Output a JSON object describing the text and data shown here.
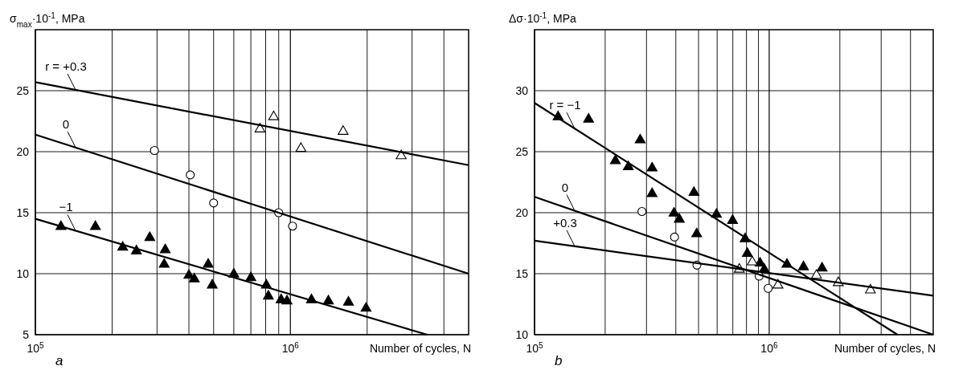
{
  "chart_data": [
    {
      "type": "scatter",
      "xlabel": "Number of cycles, N",
      "ylabel": "σ$_{max}$·10$^{-1}$, MPa",
      "annotations": [
        "a"
      ],
      "log": "x",
      "grid": true,
      "xlim": [
        100000,
        5000000
      ],
      "xticks": [
        {
          "value": 100000,
          "label": "10$^{5}$"
        },
        {
          "value": 200000,
          "label": null
        },
        {
          "value": 300000,
          "label": null
        },
        {
          "value": 400000,
          "label": null
        },
        {
          "value": 500000,
          "label": null
        },
        {
          "value": 600000,
          "label": null
        },
        {
          "value": 700000,
          "label": null
        },
        {
          "value": 800000,
          "label": null
        },
        {
          "value": 900000,
          "label": null
        },
        {
          "value": 1000000,
          "label": "10$^{6}$"
        },
        {
          "value": 2000000,
          "label": null
        },
        {
          "value": 3000000,
          "label": null
        },
        {
          "value": 4000000,
          "label": null
        }
      ],
      "ylim": [
        5,
        30
      ],
      "yticks": [
        5,
        10,
        15,
        20,
        25
      ],
      "series": [
        {
          "marker": "triangle",
          "color": "#000000",
          "x": [
            126000,
            172000,
            220000,
            249000,
            281000,
            323000,
            320000,
            400000,
            420000,
            476000,
            494000,
            600000,
            700000,
            805000,
            820000,
            920000,
            970000,
            1210000,
            1410000,
            1690000,
            1980000
          ],
          "values": [
            13.9,
            13.9,
            12.2,
            11.9,
            13.0,
            12.0,
            10.8,
            9.9,
            9.6,
            10.8,
            9.1,
            10.0,
            9.7,
            9.1,
            8.2,
            7.9,
            7.8,
            7.9,
            7.8,
            7.7,
            7.2
          ]
        },
        {
          "marker": "circle",
          "color": "#ffffff",
          "x": [
            293000,
            405000,
            500000,
            900000,
            1020000
          ],
          "values": [
            20.1,
            18.1,
            15.8,
            15.0,
            13.9
          ]
        },
        {
          "marker": "triangle",
          "color": "#ffffff",
          "x": [
            760000,
            860000,
            1100000,
            1610000,
            2720000
          ],
          "values": [
            21.9,
            22.9,
            20.3,
            21.7,
            19.7
          ]
        },
        {
          "type": "line",
          "name": "r = +0.3",
          "color": "#000000",
          "x": [
            100000,
            5000000
          ],
          "values": [
            25.7,
            18.9
          ]
        },
        {
          "type": "line",
          "name": "0",
          "color": "#000000",
          "x": [
            100000,
            5000000
          ],
          "values": [
            21.4,
            10.0
          ]
        },
        {
          "type": "line",
          "name": "−1",
          "color": "#000000",
          "x": [
            100000,
            3440000
          ],
          "values": [
            14.5,
            5
          ]
        }
      ]
    },
    {
      "type": "scatter",
      "xlabel": "Number of cycles, N",
      "ylabel": "Δσ·10$^{-1}$, MPa",
      "annotations": [
        "b"
      ],
      "log": "x",
      "grid": true,
      "xlim": [
        100000,
        5000000
      ],
      "xticks": [
        {
          "value": 100000,
          "label": "10$^{5}$"
        },
        {
          "value": 200000,
          "label": null
        },
        {
          "value": 300000,
          "label": null
        },
        {
          "value": 400000,
          "label": null
        },
        {
          "value": 500000,
          "label": null
        },
        {
          "value": 600000,
          "label": null
        },
        {
          "value": 700000,
          "label": null
        },
        {
          "value": 800000,
          "label": null
        },
        {
          "value": 900000,
          "label": null
        },
        {
          "value": 1000000,
          "label": "10$^{6}$"
        },
        {
          "value": 2000000,
          "label": null
        },
        {
          "value": 3000000,
          "label": null
        },
        {
          "value": 4000000,
          "label": null
        }
      ],
      "ylim": [
        10,
        35
      ],
      "yticks": [
        10,
        15,
        20,
        25,
        30
      ],
      "series": [
        {
          "marker": "triangle",
          "color": "#000000",
          "x": [
            126000,
            170000,
            282000,
            221000,
            251000,
            317000,
            317000,
            478000,
            393000,
            414000,
            491000,
            596000,
            698000,
            790000,
            807000,
            914000,
            953000,
            1190000,
            1400000,
            1680000
          ],
          "values": [
            27.9,
            27.7,
            26.0,
            24.3,
            23.8,
            23.7,
            21.6,
            21.7,
            20.0,
            19.5,
            18.3,
            19.9,
            19.4,
            17.9,
            16.7,
            15.9,
            15.4,
            15.8,
            15.6,
            15.5
          ]
        },
        {
          "marker": "circle",
          "color": "#ffffff",
          "x": [
            287000,
            395000,
            492000,
            906000,
            990000
          ],
          "values": [
            20.1,
            18.0,
            15.7,
            14.8,
            13.8
          ]
        },
        {
          "marker": "triangle",
          "color": "#ffffff",
          "x": [
            746000,
            847000,
            1090000,
            1590000,
            1970000,
            2700000
          ],
          "values": [
            15.4,
            16.0,
            14.1,
            14.9,
            14.3,
            13.7
          ]
        },
        {
          "type": "line",
          "name": "r = −1",
          "color": "#000000",
          "x": [
            100000,
            3520000
          ],
          "values": [
            29.0,
            10
          ]
        },
        {
          "type": "line",
          "name": "0",
          "color": "#000000",
          "x": [
            100000,
            5000000
          ],
          "values": [
            21.3,
            10
          ]
        },
        {
          "type": "line",
          "name": "+0.3",
          "color": "#000000",
          "x": [
            100000,
            5000000
          ],
          "values": [
            17.7,
            13.2
          ]
        }
      ]
    }
  ]
}
